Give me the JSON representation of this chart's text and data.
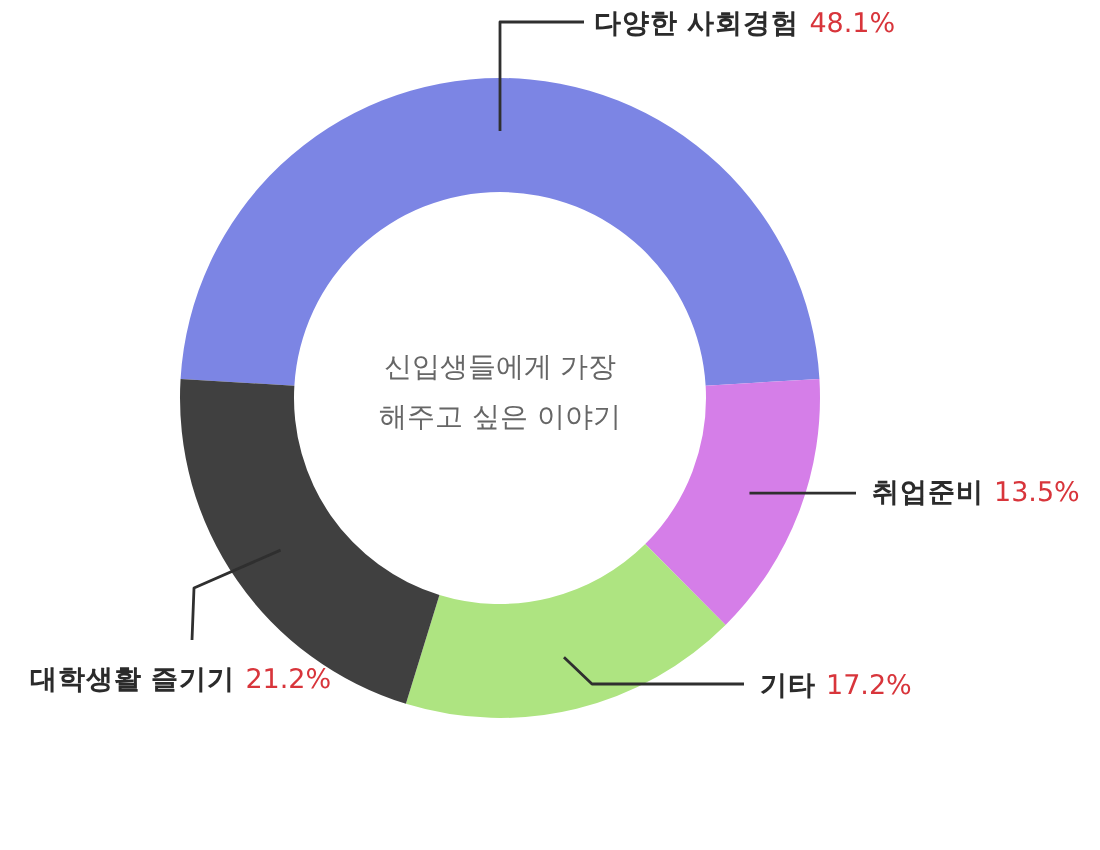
{
  "chart_data": {
    "type": "donut",
    "title": "신입생들에게 가장 해주고 싶은 이야기",
    "categories": [
      "다양한 사회경험",
      "취업준비",
      "기타",
      "대학생활 즐기기"
    ],
    "values": [
      48.1,
      13.5,
      17.2,
      21.2
    ],
    "colors": [
      "#7c85e4",
      "#d57ee8",
      "#aee481",
      "#404040"
    ],
    "value_labels": [
      "48.1%",
      "13.5%",
      "17.2%",
      "21.2%"
    ]
  }
}
